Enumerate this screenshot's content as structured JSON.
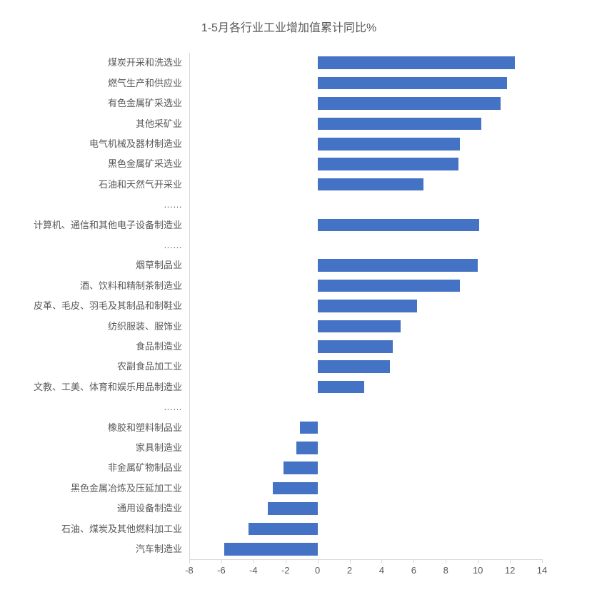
{
  "chart": {
    "type": "bar-horizontal",
    "title": "1-5月各行业工业增加值累计同比%",
    "title_fontsize": 16,
    "title_color": "#595959",
    "background_color": "#ffffff",
    "bar_color": "#4472c4",
    "axis_color": "#d9d9d9",
    "tick_color": "#595959",
    "label_color": "#595959",
    "label_fontsize": 13,
    "xlim": [
      -8,
      14
    ],
    "xtick_step": 2,
    "xticks": [
      -8,
      -6,
      -4,
      -2,
      0,
      2,
      4,
      6,
      8,
      10,
      12,
      14
    ],
    "bar_height_ratio": 0.62,
    "categories": [
      "煤炭开采和洗选业",
      "燃气生产和供应业",
      "有色金属矿采选业",
      "其他采矿业",
      "电气机械及器材制造业",
      "黑色金属矿采选业",
      "石油和天然气开采业",
      "……",
      "计算机、通信和其他电子设备制造业",
      "……",
      "烟草制品业",
      "酒、饮料和精制茶制造业",
      "皮革、毛皮、羽毛及其制品和制鞋业",
      "纺织服装、服饰业",
      "食品制造业",
      "农副食品加工业",
      "文教、工美、体育和娱乐用品制造业",
      "……",
      "橡胶和塑料制品业",
      "家具制造业",
      "非金属矿物制品业",
      "黑色金属冶炼及压延加工业",
      "通用设备制造业",
      "石油、煤炭及其他燃料加工业",
      "汽车制造业"
    ],
    "values": [
      12.3,
      11.8,
      11.4,
      10.2,
      8.9,
      8.8,
      6.6,
      null,
      10.1,
      null,
      10.0,
      8.9,
      6.2,
      5.2,
      4.7,
      4.5,
      2.9,
      null,
      -1.1,
      -1.3,
      -2.1,
      -2.8,
      -3.1,
      -4.3,
      -5.8
    ]
  }
}
